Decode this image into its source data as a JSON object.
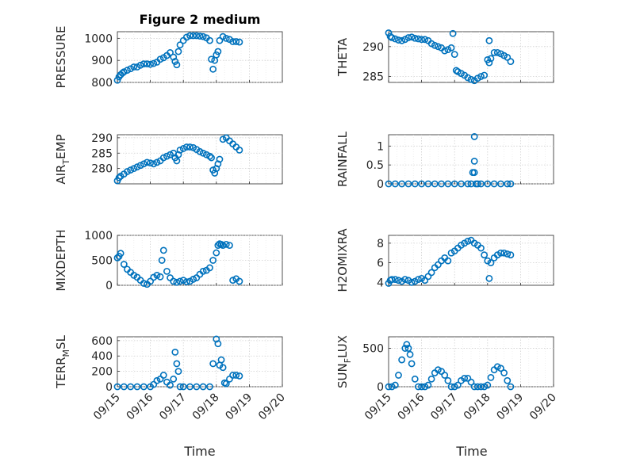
{
  "figure_title": "Figure 2 medium",
  "marker_color": "#0072BD",
  "x_ticks": [
    "09/15",
    "09/16",
    "09/17",
    "09/18",
    "09/19",
    "09/20"
  ],
  "x_label": "Time",
  "chart_data": [
    {
      "type": "scatter",
      "ylabel": "PRESSURE",
      "ylim": [
        800,
        1030
      ],
      "yticks": [
        800,
        900,
        1000
      ],
      "x": [
        0,
        0.05,
        0.1,
        0.15,
        0.2,
        0.3,
        0.4,
        0.5,
        0.6,
        0.7,
        0.8,
        0.9,
        1.0,
        1.1,
        1.2,
        1.3,
        1.4,
        1.5,
        1.6,
        1.7,
        1.75,
        1.8,
        1.85,
        1.9,
        2.0,
        2.1,
        2.2,
        2.3,
        2.4,
        2.5,
        2.6,
        2.7,
        2.8,
        2.85,
        2.9,
        2.95,
        3.0,
        3.05,
        3.1,
        3.2,
        3.3,
        3.4,
        3.5,
        3.6,
        3.7
      ],
      "y": [
        810,
        825,
        835,
        842,
        848,
        855,
        862,
        870,
        870,
        878,
        884,
        884,
        882,
        886,
        892,
        905,
        912,
        922,
        935,
        915,
        895,
        880,
        940,
        970,
        990,
        1005,
        1012,
        1012,
        1012,
        1010,
        1008,
        1002,
        990,
        905,
        860,
        900,
        925,
        940,
        990,
        1008,
        1000,
        995,
        985,
        985,
        983
      ]
    },
    {
      "type": "scatter",
      "ylabel": "THETA",
      "ylim": [
        284,
        292.5
      ],
      "yticks": [
        285,
        290
      ],
      "x": [
        0,
        0.05,
        0.1,
        0.2,
        0.3,
        0.4,
        0.5,
        0.6,
        0.7,
        0.8,
        0.9,
        1.0,
        1.1,
        1.2,
        1.3,
        1.4,
        1.5,
        1.6,
        1.7,
        1.8,
        1.9,
        2.0,
        2.05,
        2.1,
        2.2,
        2.3,
        2.4,
        2.5,
        2.6,
        2.7,
        2.8,
        2.9,
        3.0,
        3.05,
        3.1,
        3.2,
        3.3,
        3.4,
        3.5,
        3.6,
        3.7,
        1.95,
        3.05
      ],
      "y": [
        292.3,
        291.7,
        291.5,
        291.3,
        291.1,
        291.0,
        291.2,
        291.5,
        291.6,
        291.4,
        291.3,
        291.2,
        291.2,
        291.0,
        290.5,
        290.2,
        290.0,
        289.8,
        289.3,
        289.5,
        289.8,
        288.7,
        286.0,
        285.8,
        285.5,
        285.2,
        284.8,
        284.5,
        284.3,
        284.7,
        285.0,
        285.2,
        287.8,
        291.0,
        288.0,
        289.0,
        289.0,
        288.8,
        288.5,
        288.2,
        287.5,
        292.2,
        287.3
      ]
    },
    {
      "type": "scatter",
      "ylabel": "AIR_TEMP",
      "ylim": [
        275,
        291
      ],
      "yticks": [
        280,
        285,
        290
      ],
      "x": [
        0,
        0.05,
        0.1,
        0.2,
        0.3,
        0.4,
        0.5,
        0.6,
        0.7,
        0.8,
        0.9,
        1.0,
        1.1,
        1.2,
        1.3,
        1.4,
        1.5,
        1.6,
        1.7,
        1.75,
        1.8,
        1.85,
        1.9,
        2.0,
        2.1,
        2.2,
        2.3,
        2.4,
        2.5,
        2.6,
        2.7,
        2.8,
        2.85,
        2.9,
        2.95,
        3.0,
        3.05,
        3.1,
        3.2,
        3.3,
        3.4,
        3.5,
        3.6,
        3.7
      ],
      "y": [
        276.0,
        277.0,
        277.5,
        278.2,
        279.0,
        279.5,
        280.0,
        280.5,
        281.0,
        281.5,
        282.0,
        281.8,
        281.5,
        282.0,
        282.5,
        283.5,
        284.0,
        284.5,
        285.0,
        283.5,
        282.5,
        284.5,
        286.0,
        286.5,
        287.0,
        287.0,
        286.8,
        286.2,
        285.5,
        285.0,
        284.5,
        284.0,
        283.5,
        279.5,
        278.5,
        280.0,
        281.5,
        283.0,
        289.5,
        290.0,
        289.0,
        288.0,
        287.0,
        286.0
      ]
    },
    {
      "type": "scatter",
      "ylabel": "RAINFALL",
      "ylim": [
        0,
        1.3
      ],
      "yticks": [
        0,
        0.5,
        1
      ],
      "x": [
        0,
        0.2,
        0.4,
        0.6,
        0.8,
        1.0,
        1.2,
        1.4,
        1.6,
        1.8,
        2.0,
        2.2,
        2.4,
        2.5,
        2.55,
        2.6,
        2.6,
        2.6,
        2.65,
        2.7,
        2.8,
        3.0,
        3.2,
        3.4,
        3.6,
        3.7
      ],
      "y": [
        0,
        0,
        0,
        0,
        0,
        0,
        0,
        0,
        0,
        0,
        0,
        0,
        0,
        0,
        0.3,
        0.6,
        1.25,
        0.3,
        0,
        0,
        0,
        0,
        0,
        0,
        0,
        0
      ]
    },
    {
      "type": "scatter",
      "ylabel": "MIXDEPTH",
      "ylim": [
        0,
        1000
      ],
      "yticks": [
        0,
        500,
        1000
      ],
      "x": [
        0,
        0.05,
        0.1,
        0.2,
        0.3,
        0.4,
        0.5,
        0.6,
        0.7,
        0.8,
        0.9,
        1.0,
        1.1,
        1.2,
        1.3,
        1.35,
        1.4,
        1.5,
        1.6,
        1.7,
        1.8,
        1.9,
        2.0,
        2.1,
        2.2,
        2.3,
        2.4,
        2.5,
        2.6,
        2.7,
        2.8,
        2.9,
        3.0,
        3.05,
        3.1,
        3.15,
        3.2,
        3.3,
        3.4,
        3.5,
        3.6,
        3.7
      ],
      "y": [
        550,
        580,
        640,
        420,
        320,
        260,
        200,
        160,
        100,
        40,
        20,
        80,
        160,
        200,
        170,
        500,
        700,
        280,
        150,
        80,
        60,
        80,
        100,
        70,
        80,
        120,
        150,
        220,
        280,
        300,
        350,
        500,
        650,
        800,
        830,
        820,
        800,
        820,
        800,
        100,
        130,
        80
      ]
    },
    {
      "type": "scatter",
      "ylabel": "H2OMIXRA",
      "ylim": [
        3.7,
        8.8
      ],
      "yticks": [
        4,
        6,
        8
      ],
      "x": [
        0,
        0.05,
        0.1,
        0.2,
        0.3,
        0.4,
        0.5,
        0.6,
        0.7,
        0.8,
        0.9,
        1.0,
        1.1,
        1.2,
        1.3,
        1.4,
        1.5,
        1.6,
        1.7,
        1.8,
        1.9,
        2.0,
        2.1,
        2.2,
        2.3,
        2.4,
        2.5,
        2.6,
        2.7,
        2.8,
        2.9,
        3.0,
        3.05,
        3.1,
        3.2,
        3.3,
        3.4,
        3.5,
        3.6,
        3.7
      ],
      "y": [
        3.9,
        4.2,
        4.3,
        4.3,
        4.2,
        4.1,
        4.3,
        4.2,
        4.0,
        4.1,
        4.3,
        4.4,
        4.2,
        4.6,
        5.0,
        5.5,
        5.8,
        6.2,
        6.5,
        6.2,
        7.0,
        7.2,
        7.5,
        7.8,
        8.0,
        8.2,
        8.3,
        8.0,
        7.8,
        7.5,
        6.8,
        6.2,
        4.4,
        6.0,
        6.5,
        6.8,
        7.0,
        7.0,
        6.9,
        6.8
      ]
    },
    {
      "type": "scatter",
      "ylabel": "TERR_MSL",
      "ylim": [
        0,
        650
      ],
      "yticks": [
        0,
        200,
        400,
        600
      ],
      "x": [
        0,
        0.2,
        0.4,
        0.6,
        0.8,
        1.0,
        1.1,
        1.2,
        1.3,
        1.4,
        1.5,
        1.6,
        1.7,
        1.75,
        1.8,
        1.85,
        1.9,
        2.0,
        2.2,
        2.4,
        2.6,
        2.8,
        2.9,
        3.0,
        3.05,
        3.1,
        3.15,
        3.2,
        3.25,
        3.3,
        3.4,
        3.5,
        3.6,
        3.7
      ],
      "y": [
        0,
        0,
        0,
        0,
        0,
        0,
        30,
        80,
        100,
        150,
        60,
        20,
        100,
        450,
        300,
        200,
        0,
        0,
        0,
        0,
        0,
        0,
        300,
        620,
        560,
        280,
        350,
        250,
        50,
        40,
        100,
        150,
        150,
        140
      ]
    },
    {
      "type": "scatter",
      "ylabel": "SUN_FLUX",
      "ylim": [
        0,
        650
      ],
      "yticks": [
        0,
        500
      ],
      "x": [
        0,
        0.1,
        0.2,
        0.3,
        0.4,
        0.5,
        0.55,
        0.6,
        0.65,
        0.7,
        0.8,
        0.9,
        1.0,
        1.1,
        1.2,
        1.3,
        1.4,
        1.5,
        1.6,
        1.7,
        1.8,
        1.9,
        2.0,
        2.1,
        2.2,
        2.3,
        2.4,
        2.5,
        2.6,
        2.7,
        2.8,
        2.9,
        3.0,
        3.1,
        3.2,
        3.3,
        3.4,
        3.5,
        3.6,
        3.7
      ],
      "y": [
        0,
        0,
        20,
        150,
        350,
        500,
        550,
        500,
        420,
        300,
        100,
        0,
        0,
        0,
        20,
        100,
        180,
        220,
        200,
        150,
        80,
        0,
        0,
        20,
        80,
        110,
        110,
        60,
        0,
        0,
        0,
        0,
        20,
        120,
        220,
        260,
        240,
        180,
        80,
        0
      ]
    }
  ]
}
